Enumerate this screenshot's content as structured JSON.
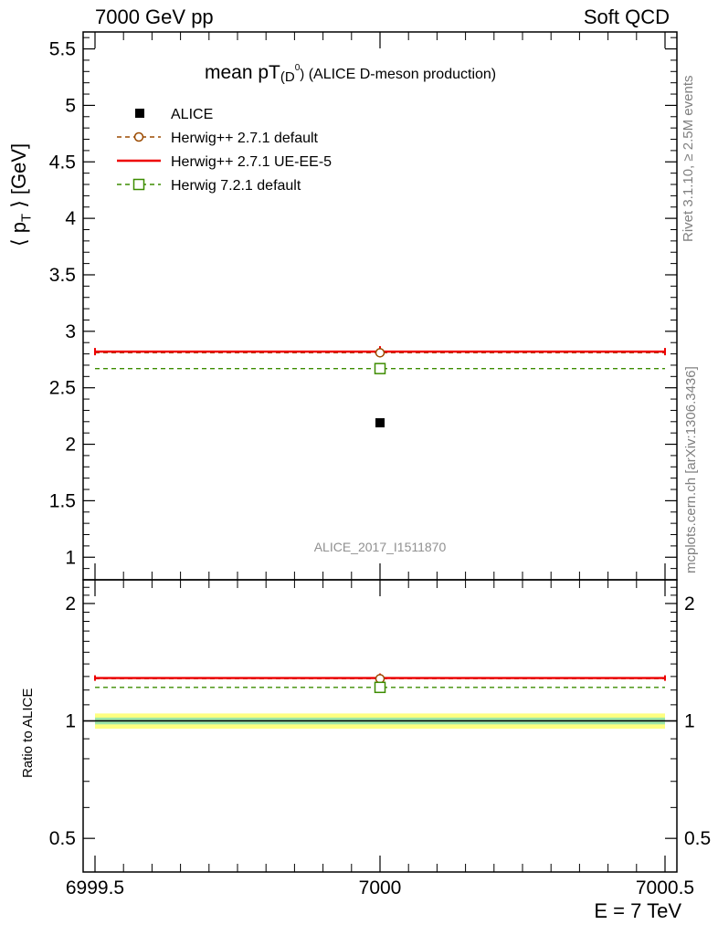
{
  "header": {
    "left": "7000 GeV pp",
    "right": "Soft QCD"
  },
  "side_texts": {
    "rivet": "Rivet 3.1.10, ≥ 2.5M events",
    "mcplots": "mcplots.cern.ch [arXiv:1306.3436]"
  },
  "analysis_id": "ALICE_2017_I1511870",
  "chart_data": [
    {
      "panel": "main",
      "type": "scatter",
      "title": "mean pT(D0) (ALICE D-meson production)",
      "title_parts": {
        "main": "mean pT",
        "sub": "(D",
        "sup": "0",
        "close": ")",
        "rest": "(ALICE D-meson production)"
      },
      "ylabel": "⟨ pT ⟩ [GeV]",
      "ylabel_parts": {
        "open": "⟨ p",
        "sub": "T",
        "close": " ⟩ [GeV]"
      },
      "xlabel": "E = 7 TeV",
      "xlim": [
        6999.5,
        7000.5
      ],
      "ylim": [
        0.8,
        5.65
      ],
      "y_ticks": [
        "1",
        "1.5",
        "2",
        "2.5",
        "3",
        "3.5",
        "4",
        "4.5",
        "5",
        "5.5"
      ],
      "x_ticks": [
        "6999.5",
        "7000",
        "7000.5"
      ],
      "legend_position": "top-left",
      "series": [
        {
          "name": "ALICE",
          "style": "data",
          "color": "#000000",
          "marker": "filled-square",
          "x": [
            7000
          ],
          "y": [
            2.19
          ]
        },
        {
          "name": "Herwig++ 2.7.1 default",
          "style": "dashed",
          "color": "#9b4a00",
          "marker": "open-circle",
          "x": [
            7000
          ],
          "y": [
            2.81
          ]
        },
        {
          "name": "Herwig++ 2.7.1 UE-EE-5",
          "style": "solid",
          "color": "#ee0000",
          "marker": "none",
          "x": [
            7000
          ],
          "y": [
            2.82
          ]
        },
        {
          "name": "Herwig 7.2.1 default",
          "style": "dashed",
          "color": "#3c8c00",
          "marker": "open-square",
          "x": [
            7000
          ],
          "y": [
            2.67
          ]
        }
      ]
    },
    {
      "panel": "ratio",
      "type": "scatter",
      "ylabel": "Ratio to ALICE",
      "xlim": [
        6999.5,
        7000.5
      ],
      "ylim": [
        0.41,
        2.3
      ],
      "y_scale": "log",
      "y_ticks": [
        "0.5",
        "1",
        "2"
      ],
      "band_inner": [
        0.98,
        1.02
      ],
      "band_outer": [
        0.955,
        1.045
      ],
      "band_colors": {
        "inner": "#9de6a8",
        "outer": "#ffff80"
      },
      "series": [
        {
          "name": "Herwig++ 2.7.1 default",
          "color": "#9b4a00",
          "y": [
            1.283
          ]
        },
        {
          "name": "Herwig++ 2.7.1 UE-EE-5",
          "color": "#ee0000",
          "y": [
            1.288
          ]
        },
        {
          "name": "Herwig 7.2.1 default",
          "color": "#3c8c00",
          "y": [
            1.219
          ]
        }
      ]
    }
  ]
}
